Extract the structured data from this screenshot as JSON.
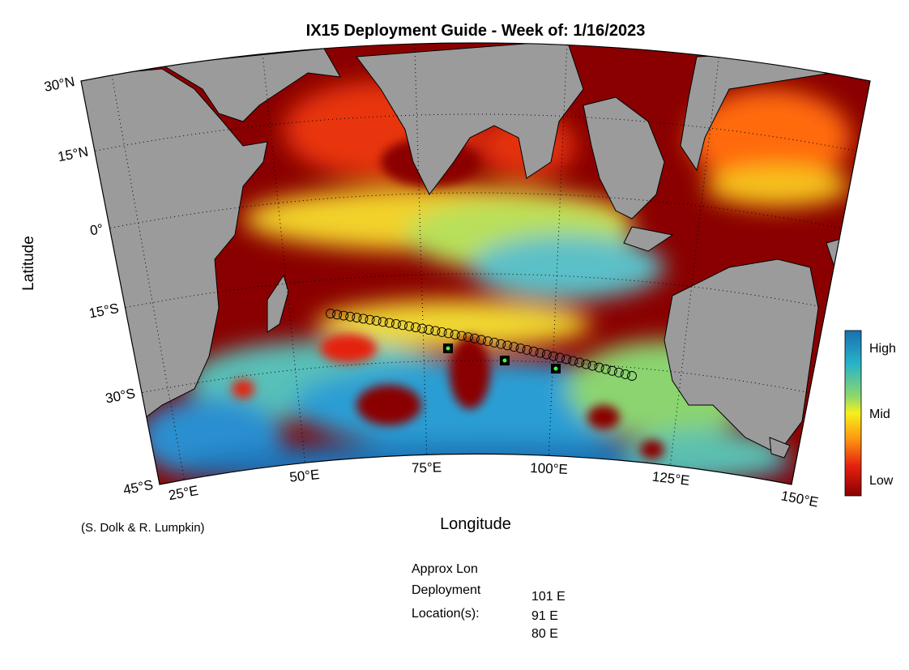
{
  "title": "IX15 Deployment Guide - Week of: 1/16/2023",
  "y_axis_label": "Latitude",
  "x_axis_label": "Longitude",
  "lat_ticks": [
    "30°N",
    "15°N",
    "0°",
    "15°S",
    "30°S",
    "45°S"
  ],
  "lon_ticks": [
    "25°E",
    "50°E",
    "75°E",
    "100°E",
    "125°E",
    "150°E"
  ],
  "colorbar_labels": [
    "High",
    "Mid",
    "Low"
  ],
  "credit": "(S. Dolk & R. Lumpkin)",
  "deployment": {
    "lines": [
      "Approx Lon",
      "Deployment",
      "Location(s):"
    ],
    "locations": [
      "101 E",
      "91 E",
      "80 E"
    ]
  }
}
